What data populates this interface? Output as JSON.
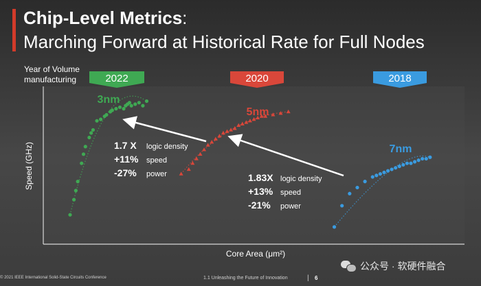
{
  "slide": {
    "title_bold": "Chip-Level Metrics",
    "title_rest": ":",
    "subtitle": "Marching Forward at Historical Rate for Full Nodes",
    "year_label": "Year of Volume manufacturing",
    "footer_left": "© 2021 IEEE International Solid-State Circuits Conference",
    "footer_mid": "1.1 Unleashing the Future of Innovation",
    "footer_sep": "|",
    "page_number": "6",
    "watermark_text": "公众号 · 软硬件融合",
    "watermark_icon": "wechat-icon"
  },
  "chart_data": {
    "type": "scatter",
    "xlabel": "Core Area (μm²)",
    "ylabel": "Speed (GHz)",
    "grid": false,
    "axis_ticks": "none",
    "series": [
      {
        "year": "2022",
        "node": "3nm",
        "color": "#3fa953",
        "marker": "circle",
        "points": [
          [
            0.07,
            0.18
          ],
          [
            0.08,
            0.28
          ],
          [
            0.085,
            0.34
          ],
          [
            0.09,
            0.4
          ],
          [
            0.1,
            0.52
          ],
          [
            0.105,
            0.58
          ],
          [
            0.11,
            0.63
          ],
          [
            0.12,
            0.69
          ],
          [
            0.125,
            0.72
          ],
          [
            0.13,
            0.74
          ],
          [
            0.14,
            0.8
          ],
          [
            0.15,
            0.81
          ],
          [
            0.16,
            0.83
          ],
          [
            0.165,
            0.84
          ],
          [
            0.175,
            0.86
          ],
          [
            0.18,
            0.87
          ],
          [
            0.19,
            0.88
          ],
          [
            0.2,
            0.89
          ],
          [
            0.21,
            0.88
          ],
          [
            0.215,
            0.9
          ],
          [
            0.22,
            0.91
          ],
          [
            0.225,
            0.92
          ],
          [
            0.23,
            0.9
          ],
          [
            0.24,
            0.91
          ],
          [
            0.25,
            0.92
          ],
          [
            0.26,
            0.9
          ],
          [
            0.27,
            0.93
          ]
        ]
      },
      {
        "year": "2020",
        "node": "5nm",
        "color": "#d9473a",
        "marker": "triangle",
        "points": [
          [
            0.36,
            0.45
          ],
          [
            0.38,
            0.48
          ],
          [
            0.39,
            0.52
          ],
          [
            0.4,
            0.55
          ],
          [
            0.41,
            0.58
          ],
          [
            0.42,
            0.61
          ],
          [
            0.43,
            0.64
          ],
          [
            0.44,
            0.66
          ],
          [
            0.45,
            0.68
          ],
          [
            0.46,
            0.7
          ],
          [
            0.47,
            0.72
          ],
          [
            0.48,
            0.73
          ],
          [
            0.49,
            0.74
          ],
          [
            0.5,
            0.75
          ],
          [
            0.51,
            0.77
          ],
          [
            0.52,
            0.78
          ],
          [
            0.53,
            0.79
          ],
          [
            0.54,
            0.8
          ],
          [
            0.55,
            0.81
          ],
          [
            0.56,
            0.82
          ],
          [
            0.57,
            0.83
          ],
          [
            0.58,
            0.83
          ],
          [
            0.6,
            0.84
          ],
          [
            0.62,
            0.85
          ],
          [
            0.64,
            0.86
          ]
        ]
      },
      {
        "year": "2018",
        "node": "7nm",
        "color": "#3a9be0",
        "marker": "circle",
        "points": [
          [
            0.76,
            0.1
          ],
          [
            0.78,
            0.24
          ],
          [
            0.8,
            0.32
          ],
          [
            0.82,
            0.36
          ],
          [
            0.84,
            0.4
          ],
          [
            0.86,
            0.43
          ],
          [
            0.87,
            0.44
          ],
          [
            0.88,
            0.45
          ],
          [
            0.89,
            0.46
          ],
          [
            0.9,
            0.47
          ],
          [
            0.91,
            0.48
          ],
          [
            0.92,
            0.49
          ],
          [
            0.93,
            0.5
          ],
          [
            0.94,
            0.51
          ],
          [
            0.95,
            0.52
          ],
          [
            0.96,
            0.52
          ],
          [
            0.97,
            0.53
          ],
          [
            0.98,
            0.54
          ],
          [
            0.99,
            0.55
          ],
          [
            1.0,
            0.55
          ],
          [
            1.01,
            0.56
          ]
        ]
      }
    ],
    "annotations": [
      {
        "from": "2020",
        "to": "2022",
        "values": [
          "1.7 X",
          "+11%",
          "-27%"
        ],
        "labels": [
          "logic density",
          "speed",
          "power"
        ]
      },
      {
        "from": "2018",
        "to": "2020",
        "values": [
          "1.83X",
          "+13%",
          "-21%"
        ],
        "labels": [
          "logic density",
          "speed",
          "power"
        ]
      }
    ]
  }
}
